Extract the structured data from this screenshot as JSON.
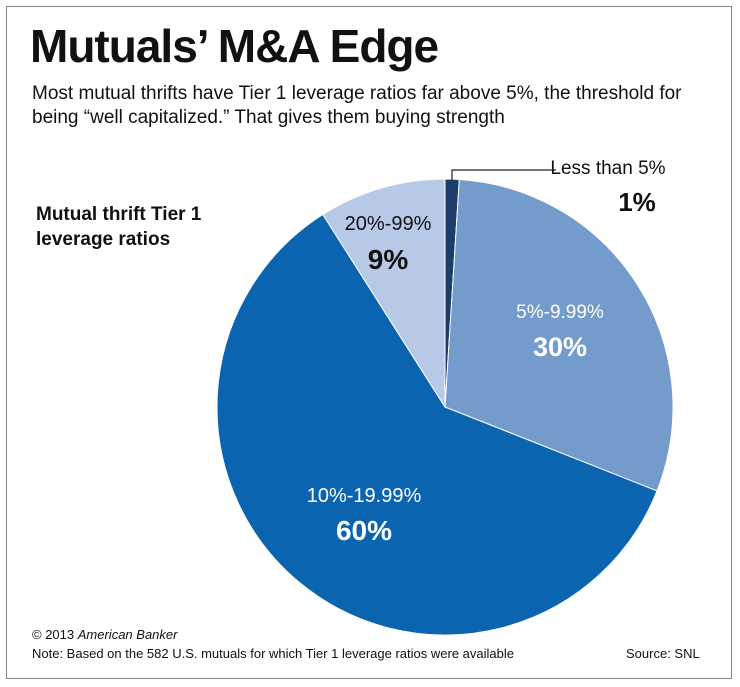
{
  "header": {
    "title": "Mutuals’ M&A Edge",
    "subtitle": "Most mutual thrifts have Tier 1 leverage ratios far above 5%, the threshold for being “well capitalized.” That gives them buying strength"
  },
  "chart_data": {
    "type": "pie",
    "title": "Mutual thrift Tier 1 leverage ratios",
    "categories": [
      "Less than 5%",
      "5%-9.99%",
      "10%-19.99%",
      "20%-99%"
    ],
    "values": [
      1,
      30,
      60,
      9
    ],
    "value_labels": [
      "1%",
      "30%",
      "60%",
      "9%"
    ],
    "colors": [
      "#1c3c6c",
      "#739bcb",
      "#0a64b0",
      "#b7c9e6"
    ],
    "label_colors": [
      "#111111",
      "#ffffff",
      "#ffffff",
      "#111111"
    ],
    "start": "12 o'clock, clockwise"
  },
  "footer": {
    "copyright": "© 2013",
    "publisher": "American Banker",
    "note": "Note: Based on the 582 U.S. mutuals for which Tier 1 leverage ratios were available",
    "source": "Source: SNL"
  }
}
